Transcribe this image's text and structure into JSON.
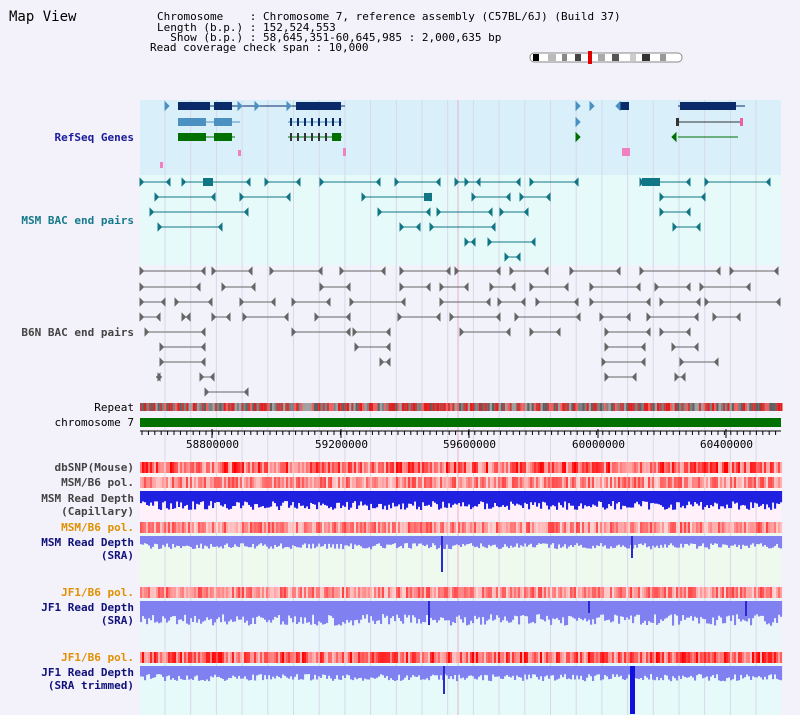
{
  "header": {
    "title": "Map View",
    "chromosome_line": "Chromosome    : Chromosome 7, reference assembly (C57BL/6J) (Build 37)",
    "length_line": "Length (b.p.) : 152,524,553",
    "show_line": "  Show (b.p.) : 58,645,351-60,645,985 : 2,000,635 bp",
    "coverage_line": "Read coverage check span : 10,000"
  },
  "tracks": {
    "refseq": "RefSeq Genes",
    "msm_bac": "MSM BAC end pairs",
    "b6n_bac": "B6N BAC end pairs",
    "repeat": "Repeat",
    "chromosome": "chromosome 7",
    "dbsnp": "dbSNP(Mouse)",
    "msm_b6_pol_1": "MSM/B6 pol.",
    "msm_read_depth_cap_1": "MSM Read Depth",
    "msm_read_depth_cap_2": "(Capillary)",
    "msm_b6_pol_2": "MSM/B6 pol.",
    "msm_read_depth_sra_1": "MSM Read Depth",
    "msm_read_depth_sra_2": "(SRA)",
    "jf1_b6_pol_1": "JF1/B6 pol.",
    "jf1_read_depth_sra_1": "JF1 Read Depth",
    "jf1_read_depth_sra_2": "(SRA)",
    "jf1_b6_pol_2": "JF1/B6 pol.",
    "jf1_read_depth_trim_1": "JF1 Read Depth",
    "jf1_read_depth_trim_2": "(SRA trimmed)"
  },
  "axis": {
    "ticks": [
      "58800000",
      "59200000",
      "59600000",
      "60000000",
      "60400000"
    ]
  },
  "colors": {
    "refseq_dark": "#0a2a6a",
    "refseq_mid": "#4a90c0",
    "refseq_green": "#007000",
    "msm_bac": "#127585",
    "b6n_bac": "#666666",
    "chromosome_bar": "#007000",
    "depth_blue": "#2020e0",
    "depth_light": "#8080f0"
  }
}
